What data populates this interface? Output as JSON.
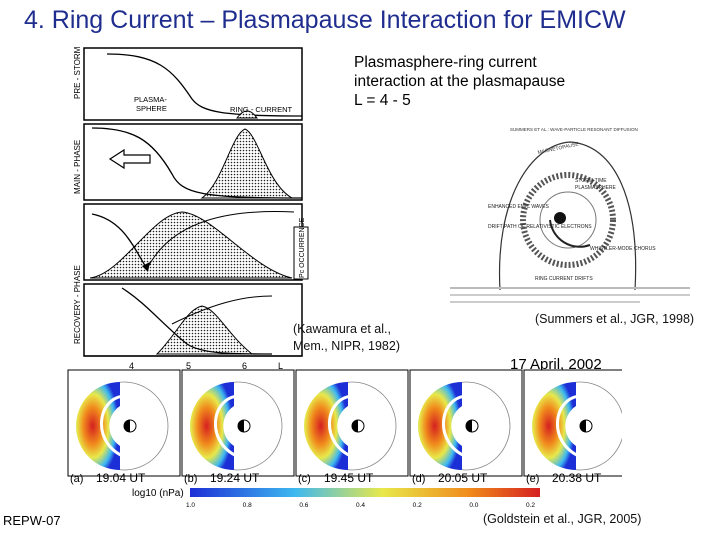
{
  "slide": {
    "title": "4.  Ring Current – Plasmapause Interaction for EMICW",
    "description_lines": [
      "Plasmasphere-ring current",
      "interaction at the plasmapause",
      "L = 4 - 5"
    ],
    "footer": "REPW-07"
  },
  "left_figure": {
    "phase_labels": [
      "PRE - STORM",
      "MAIN - PHASE",
      "RECOVERY - PHASE"
    ],
    "plasmasphere_label": [
      "PLASMA-",
      "SPHERE"
    ],
    "ring_current_label": "RING - CURRENT",
    "occurrence_label": "Pc OCCURRENCE",
    "x_ticks": [
      "4",
      "5",
      "6",
      "L"
    ],
    "caption_lines": [
      "(Kawamura et al.,",
      "Mem., NIPR, 1982)"
    ]
  },
  "right_figure": {
    "header_text": "SUMMERS ET AL.: WAVE-PARTICLE RESONANT DIFFUSION",
    "labels": {
      "magnetopause": "MAGNETOPAUSE",
      "storm_time": "STORM-TIME",
      "plasmasphere": "PLASMASPHERE",
      "enhanced_emic": "ENHANCED EMIC WAVES",
      "drift_path": "DRIFT PATH OF RELATIVISTIC ELECTRONS",
      "whistler": "WHISTLER-MODE CHORUS",
      "ring_current_drifts": "RING CURRENT DRIFTS"
    },
    "caption": "(Summers et al., JGR, 1998)"
  },
  "bottom_figure": {
    "date": "17 April,  2002",
    "panels": [
      {
        "letter": "(a)",
        "time": "19:04 UT"
      },
      {
        "letter": "(b)",
        "time": "19:24 UT"
      },
      {
        "letter": "(c)",
        "time": "19:45 UT"
      },
      {
        "letter": "(d)",
        "time": "20:05 UT"
      },
      {
        "letter": "(e)",
        "time": "20:38 UT"
      }
    ],
    "colorbar_label": "log10 (nPa)",
    "colorbar_ticks": [
      "1.0",
      "0.8",
      "0.6",
      "0.4",
      "0.2",
      "0.0",
      "0.2"
    ],
    "colors": {
      "bar_start": "#1c2fd6",
      "bar_mid": "#e8e84a",
      "bar_end": "#d52020"
    },
    "caption": "(Goldstein et al., JGR, 2005)"
  }
}
